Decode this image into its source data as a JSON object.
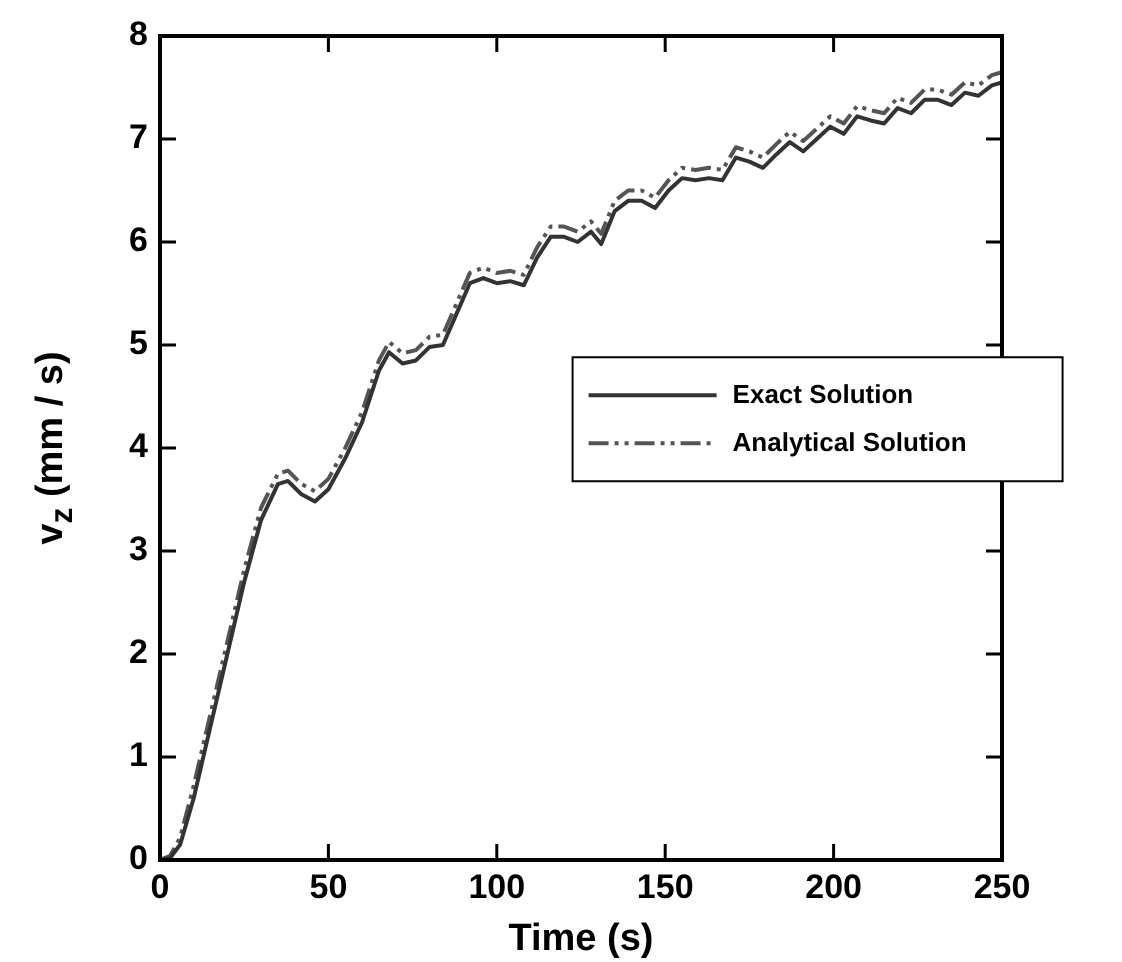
{
  "chart_data": {
    "type": "line",
    "xlabel": "Time (s)",
    "ylabel": "v$_{z}$ (mm / s)",
    "xlim": [
      0,
      250
    ],
    "ylim": [
      0,
      8
    ],
    "xticks": [
      0,
      50,
      100,
      150,
      200,
      250
    ],
    "yticks": [
      0,
      1,
      2,
      3,
      4,
      5,
      6,
      7,
      8
    ],
    "grid": false,
    "legend": "right",
    "marker": "none",
    "series": [
      {
        "name": "Exact Solution",
        "color": "#333333",
        "line_style": "solid",
        "x": [
          0,
          3,
          6,
          10,
          15,
          20,
          25,
          30,
          35,
          38,
          42,
          46,
          50,
          55,
          60,
          65,
          68,
          72,
          76,
          80,
          84,
          88,
          92,
          96,
          100,
          104,
          108,
          112,
          116,
          120,
          124,
          128,
          131,
          135,
          139,
          143,
          147,
          151,
          155,
          159,
          163,
          167,
          171,
          175,
          179,
          183,
          187,
          191,
          195,
          199,
          203,
          207,
          211,
          215,
          219,
          223,
          227,
          231,
          235,
          239,
          243,
          247,
          250
        ],
        "values": [
          0,
          0.02,
          0.15,
          0.6,
          1.3,
          2.0,
          2.7,
          3.3,
          3.65,
          3.68,
          3.55,
          3.48,
          3.6,
          3.9,
          4.25,
          4.75,
          4.93,
          4.82,
          4.85,
          4.98,
          5.0,
          5.3,
          5.6,
          5.65,
          5.6,
          5.62,
          5.58,
          5.85,
          6.05,
          6.05,
          6.0,
          6.1,
          5.98,
          6.3,
          6.4,
          6.4,
          6.33,
          6.5,
          6.62,
          6.6,
          6.62,
          6.6,
          6.82,
          6.78,
          6.72,
          6.85,
          6.97,
          6.88,
          7.0,
          7.12,
          7.05,
          7.22,
          7.18,
          7.15,
          7.3,
          7.25,
          7.38,
          7.38,
          7.33,
          7.45,
          7.42,
          7.52,
          7.55
        ]
      },
      {
        "name": "Analytical Solution",
        "color": "#555555",
        "line_style": "dashed",
        "x": [
          0,
          3,
          6,
          10,
          15,
          20,
          25,
          30,
          35,
          38,
          42,
          46,
          50,
          55,
          60,
          65,
          68,
          72,
          76,
          80,
          84,
          88,
          92,
          96,
          100,
          104,
          108,
          112,
          116,
          120,
          124,
          128,
          131,
          135,
          139,
          143,
          147,
          151,
          155,
          159,
          163,
          167,
          171,
          175,
          179,
          183,
          187,
          191,
          195,
          199,
          203,
          207,
          211,
          215,
          219,
          223,
          227,
          231,
          235,
          239,
          243,
          247,
          250
        ],
        "values": [
          0,
          0.04,
          0.22,
          0.72,
          1.42,
          2.12,
          2.82,
          3.42,
          3.75,
          3.78,
          3.65,
          3.58,
          3.7,
          4.0,
          4.35,
          4.85,
          5.03,
          4.92,
          4.95,
          5.08,
          5.1,
          5.4,
          5.7,
          5.75,
          5.7,
          5.72,
          5.68,
          5.95,
          6.15,
          6.15,
          6.1,
          6.2,
          6.08,
          6.4,
          6.5,
          6.5,
          6.43,
          6.6,
          6.72,
          6.7,
          6.72,
          6.7,
          6.92,
          6.88,
          6.82,
          6.95,
          7.07,
          6.98,
          7.1,
          7.22,
          7.15,
          7.32,
          7.28,
          7.25,
          7.4,
          7.35,
          7.48,
          7.48,
          7.43,
          7.55,
          7.52,
          7.62,
          7.65
        ]
      }
    ]
  }
}
